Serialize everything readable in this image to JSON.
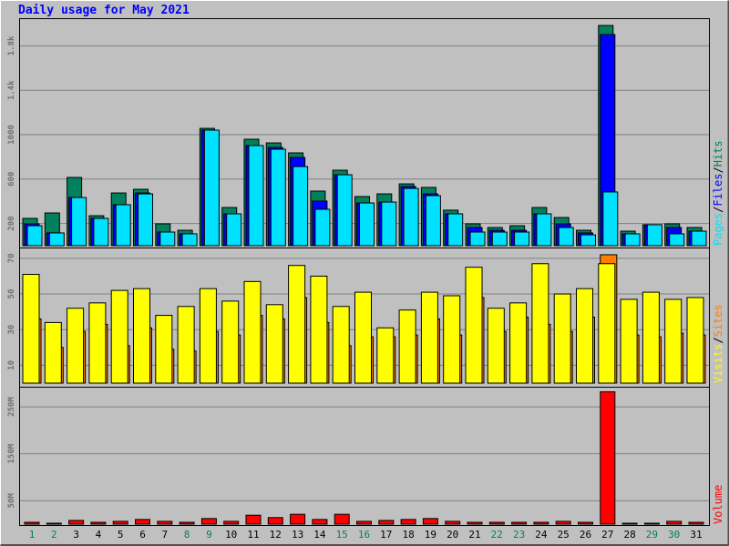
{
  "title": "Daily usage for May 2021",
  "chart_data": [
    {
      "type": "bar",
      "legend_separator": "/",
      "series": [
        {
          "name": "Pages",
          "color": "#00e0ff",
          "values": [
            180,
            115,
            434,
            246,
            369,
            467,
            123,
            107,
            1041,
            287,
            902,
            869,
            713,
            328,
            639,
            385,
            393,
            516,
            451,
            287,
            123,
            123,
            123,
            287,
            164,
            98,
            484,
            107,
            189,
            107,
            131
          ]
        },
        {
          "name": "Files",
          "color": "#0000ff",
          "values": [
            197,
            115,
            434,
            246,
            369,
            475,
            123,
            107,
            1041,
            287,
            902,
            885,
            795,
            402,
            639,
            385,
            393,
            533,
            467,
            287,
            164,
            139,
            139,
            287,
            197,
            115,
            1902,
            107,
            189,
            164,
            131
          ]
        },
        {
          "name": "Hits",
          "color": "#00805c",
          "values": [
            246,
            295,
            615,
            270,
            475,
            508,
            197,
            139,
            1057,
            344,
            959,
            926,
            836,
            492,
            680,
            443,
            467,
            557,
            525,
            320,
            197,
            164,
            180,
            344,
            254,
            139,
            1984,
            131,
            189,
            197,
            164
          ]
        }
      ],
      "ylim": [
        0,
        2033
      ],
      "yticks": [
        200,
        600,
        1000,
        {
          "value": 1400,
          "label": "1.4k"
        },
        {
          "value": 1800,
          "label": "1.8k"
        }
      ],
      "grid": true
    },
    {
      "type": "bar",
      "legend_separator": "/",
      "series": [
        {
          "name": "Visits",
          "color": "#ffff00",
          "values": [
            61,
            34,
            42,
            45,
            52,
            53,
            38,
            43,
            53,
            46,
            57,
            44,
            66,
            60,
            43,
            51,
            31,
            41,
            51,
            49,
            65,
            42,
            45,
            67,
            50,
            53,
            67,
            47,
            51,
            47,
            48
          ]
        },
        {
          "name": "Sites",
          "color": "#ff8000",
          "values": [
            36,
            20,
            29,
            33,
            21,
            31,
            19,
            18,
            29,
            27,
            38,
            36,
            48,
            34,
            21,
            26,
            26,
            27,
            36,
            27,
            48,
            29,
            37,
            33,
            29,
            37,
            72,
            27,
            26,
            28,
            27
          ]
        }
      ],
      "ylim": [
        0,
        73
      ],
      "yticks": [
        10,
        30,
        50,
        70
      ],
      "grid": true
    },
    {
      "type": "bar",
      "categories": [
        "1",
        "2",
        "3",
        "4",
        "5",
        "6",
        "7",
        "8",
        "9",
        "10",
        "11",
        "12",
        "13",
        "14",
        "15",
        "16",
        "17",
        "18",
        "19",
        "20",
        "21",
        "22",
        "23",
        "24",
        "25",
        "26",
        "27",
        "28",
        "29",
        "30",
        "31"
      ],
      "category_colors": [
        "#00805c",
        "#00805c",
        "#000000",
        "#000000",
        "#000000",
        "#000000",
        "#000000",
        "#00805c",
        "#00805c",
        "#000000",
        "#000000",
        "#000000",
        "#000000",
        "#000000",
        "#00805c",
        "#00805c",
        "#000000",
        "#000000",
        "#000000",
        "#000000",
        "#000000",
        "#00805c",
        "#00805c",
        "#000000",
        "#000000",
        "#000000",
        "#000000",
        "#000000",
        "#00805c",
        "#00805c",
        "#000000"
      ],
      "series": [
        {
          "name": "Volume",
          "color": "#ff0000",
          "values": [
            4,
            2,
            8,
            4,
            6,
            10,
            6,
            4,
            12,
            6,
            19,
            14,
            21,
            10,
            21,
            6,
            8,
            10,
            12,
            6,
            4,
            4,
            4,
            4,
            6,
            4,
            282,
            2,
            2,
            6,
            4
          ]
        }
      ],
      "ylim": [
        0,
        287
      ],
      "yticks": [
        {
          "value": 50,
          "label": "50M"
        },
        {
          "value": 150,
          "label": "150M"
        },
        {
          "value": 250,
          "label": "250M"
        }
      ],
      "grid": true
    }
  ]
}
